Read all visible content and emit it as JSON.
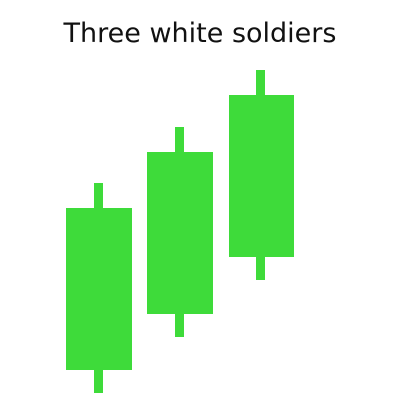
{
  "title": "Three white soldiers",
  "pattern": {
    "candle_color": "#3edb3a",
    "candles": [
      {
        "name": "first-bullish-candle"
      },
      {
        "name": "second-bullish-candle"
      },
      {
        "name": "third-bullish-candle"
      }
    ]
  }
}
